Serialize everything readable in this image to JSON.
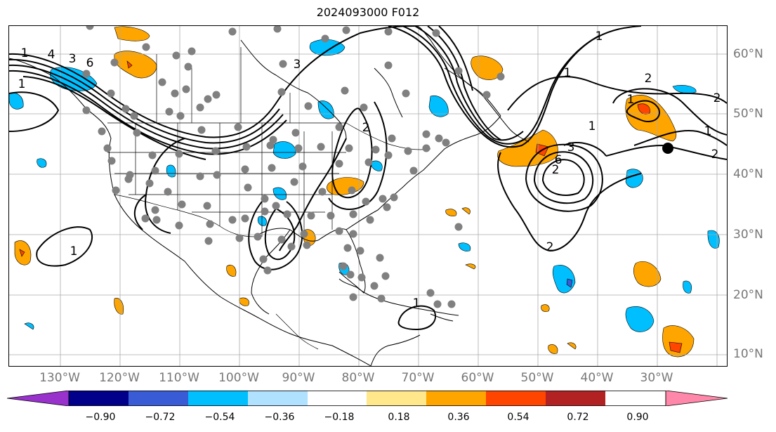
{
  "header": {
    "title": "2024093000 F012"
  },
  "map": {
    "projection": "Plate Carree",
    "lon_range": [
      "140°W",
      "20°W"
    ],
    "lat_range": [
      "8°N",
      "65°N"
    ],
    "gridlines": true,
    "longitude_labels": [
      "130°W",
      "120°W",
      "110°W",
      "100°W",
      "90°W",
      "80°W",
      "70°W",
      "60°W",
      "50°W",
      "40°W",
      "30°W"
    ],
    "latitude_labels": [
      "60°N",
      "50°N",
      "40°N",
      "30°N",
      "20°N",
      "10°N"
    ],
    "contour_labels": [
      "4",
      "3",
      "6",
      "1",
      "2",
      "1",
      "2",
      "1",
      "2",
      "1",
      "1",
      "3",
      "6",
      "2",
      "2",
      "1",
      "1",
      "3",
      "2",
      "1",
      "1"
    ],
    "point_marker_color": "#808080",
    "highlight_marker_color": "#000000"
  },
  "colorbar": {
    "ticks": [
      "−0.90",
      "−0.72",
      "−0.54",
      "−0.36",
      "−0.18",
      "0.18",
      "0.36",
      "0.54",
      "0.72",
      "0.90"
    ],
    "colors": [
      "#9932cc",
      "#00008b",
      "#3a5bd6",
      "#00bfff",
      "#b0e2ff",
      "#ffffff",
      "#ffe88c",
      "#ffa500",
      "#ff4500",
      "#b22222",
      "#ff88aa"
    ]
  }
}
